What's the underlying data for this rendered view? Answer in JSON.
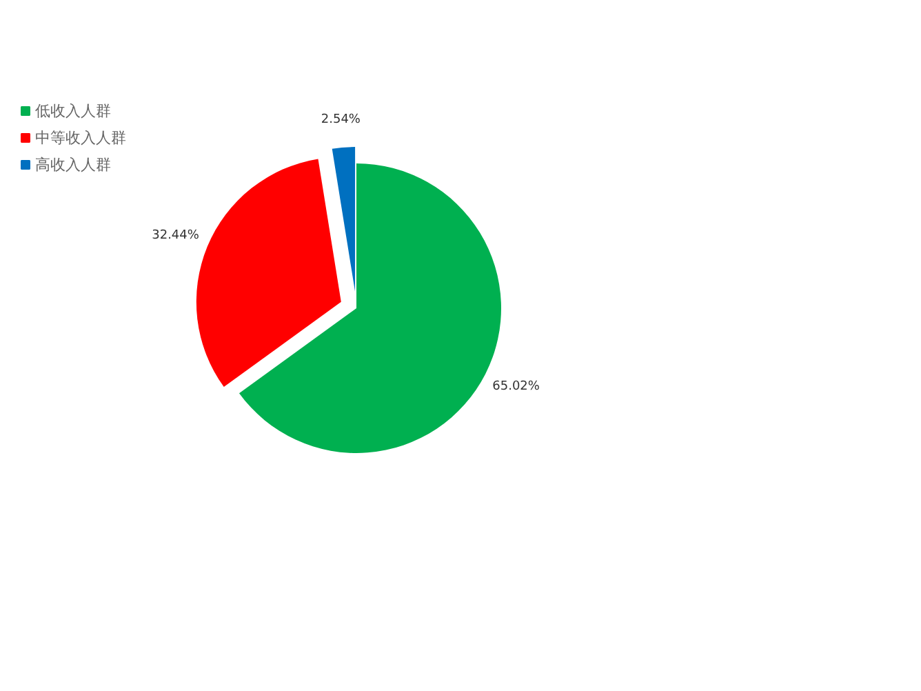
{
  "chart_data": {
    "type": "pie",
    "categories": [
      "低收入人群",
      "中等收入人群",
      "高收入人群"
    ],
    "values": [
      65.02,
      32.44,
      2.54
    ],
    "colors": [
      "#00b050",
      "#ff0000",
      "#0070c0"
    ],
    "value_labels": [
      "65.02%",
      "32.44%",
      "2.54%"
    ],
    "legend": "top left"
  }
}
